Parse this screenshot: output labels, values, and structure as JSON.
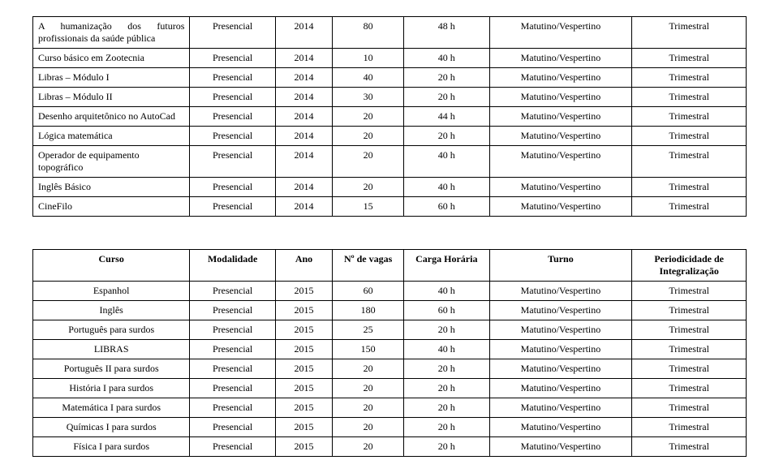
{
  "table1": {
    "rows": [
      {
        "curso": "A humanização dos futuros profissionais da saúde pública",
        "modalidade": "Presencial",
        "ano": "2014",
        "vagas": "80",
        "carga": "48 h",
        "turno": "Matutino/Vespertino",
        "period": "Trimestral"
      },
      {
        "curso": "Curso básico em Zootecnia",
        "modalidade": "Presencial",
        "ano": "2014",
        "vagas": "10",
        "carga": "40 h",
        "turno": "Matutino/Vespertino",
        "period": "Trimestral"
      },
      {
        "curso": "Libras – Módulo I",
        "modalidade": "Presencial",
        "ano": "2014",
        "vagas": "40",
        "carga": "20 h",
        "turno": "Matutino/Vespertino",
        "period": "Trimestral"
      },
      {
        "curso": "Libras – Módulo II",
        "modalidade": "Presencial",
        "ano": "2014",
        "vagas": "30",
        "carga": "20 h",
        "turno": "Matutino/Vespertino",
        "period": "Trimestral"
      },
      {
        "curso": "Desenho arquitetônico no AutoCad",
        "modalidade": "Presencial",
        "ano": "2014",
        "vagas": "20",
        "carga": "44 h",
        "turno": "Matutino/Vespertino",
        "period": "Trimestral"
      },
      {
        "curso": "Lógica matemática",
        "modalidade": "Presencial",
        "ano": "2014",
        "vagas": "20",
        "carga": "20 h",
        "turno": "Matutino/Vespertino",
        "period": "Trimestral"
      },
      {
        "curso": "Operador de equipamento topográfico",
        "modalidade": "Presencial",
        "ano": "2014",
        "vagas": "20",
        "carga": "40 h",
        "turno": "Matutino/Vespertino",
        "period": "Trimestral"
      },
      {
        "curso": "Inglês Básico",
        "modalidade": "Presencial",
        "ano": "2014",
        "vagas": "20",
        "carga": "40 h",
        "turno": "Matutino/Vespertino",
        "period": "Trimestral"
      },
      {
        "curso": "CineFilo",
        "modalidade": "Presencial",
        "ano": "2014",
        "vagas": "15",
        "carga": "60 h",
        "turno": "Matutino/Vespertino",
        "period": "Trimestral"
      }
    ]
  },
  "table2": {
    "headers": {
      "curso": "Curso",
      "modalidade": "Modalidade",
      "ano": "Ano",
      "vagas": "Nº de vagas",
      "carga": "Carga Horária",
      "turno": "Turno",
      "period": "Periodicidade de Integralização"
    },
    "rows": [
      {
        "curso": "Espanhol",
        "modalidade": "Presencial",
        "ano": "2015",
        "vagas": "60",
        "carga": "40 h",
        "turno": "Matutino/Vespertino",
        "period": "Trimestral"
      },
      {
        "curso": "Inglês",
        "modalidade": "Presencial",
        "ano": "2015",
        "vagas": "180",
        "carga": "60 h",
        "turno": "Matutino/Vespertino",
        "period": "Trimestral"
      },
      {
        "curso": "Português para surdos",
        "modalidade": "Presencial",
        "ano": "2015",
        "vagas": "25",
        "carga": "20 h",
        "turno": "Matutino/Vespertino",
        "period": "Trimestral"
      },
      {
        "curso": "LIBRAS",
        "modalidade": "Presencial",
        "ano": "2015",
        "vagas": "150",
        "carga": "40 h",
        "turno": "Matutino/Vespertino",
        "period": "Trimestral"
      },
      {
        "curso": "Português II para surdos",
        "modalidade": "Presencial",
        "ano": "2015",
        "vagas": "20",
        "carga": "20 h",
        "turno": "Matutino/Vespertino",
        "period": "Trimestral"
      },
      {
        "curso": "História I para surdos",
        "modalidade": "Presencial",
        "ano": "2015",
        "vagas": "20",
        "carga": "20 h",
        "turno": "Matutino/Vespertino",
        "period": "Trimestral"
      },
      {
        "curso": "Matemática I para surdos",
        "modalidade": "Presencial",
        "ano": "2015",
        "vagas": "20",
        "carga": "20 h",
        "turno": "Matutino/Vespertino",
        "period": "Trimestral"
      },
      {
        "curso": "Químicas I para surdos",
        "modalidade": "Presencial",
        "ano": "2015",
        "vagas": "20",
        "carga": "20 h",
        "turno": "Matutino/Vespertino",
        "period": "Trimestral"
      },
      {
        "curso": "Física I para surdos",
        "modalidade": "Presencial",
        "ano": "2015",
        "vagas": "20",
        "carga": "20 h",
        "turno": "Matutino/Vespertino",
        "period": "Trimestral"
      }
    ]
  }
}
